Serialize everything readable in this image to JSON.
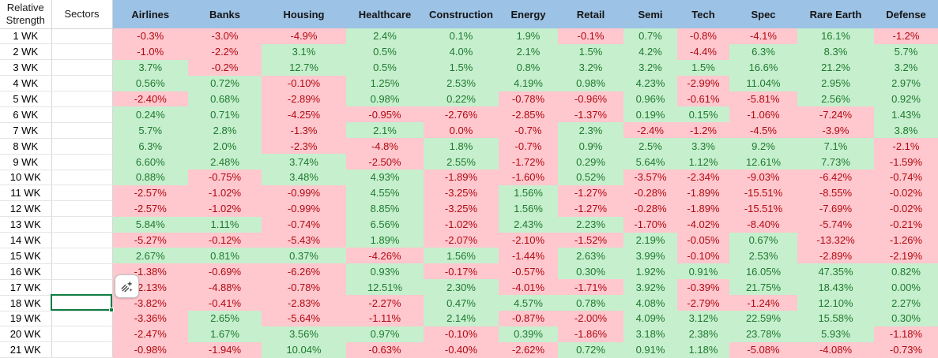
{
  "table": {
    "corner_header": {
      "line1": "Relative",
      "line2": "Strength"
    },
    "sectors_header": "Sectors",
    "columns": [
      "Airlines",
      "Banks",
      "Housing",
      "Healthcare",
      "Construction",
      "Energy",
      "Retail",
      "Semi",
      "Tech",
      "Spec",
      "Rare Earth",
      "Defense"
    ],
    "rows": [
      {
        "label": "1 WK",
        "values": [
          "-0.3%",
          "-3.0%",
          "-4.9%",
          "2.4%",
          "0.1%",
          "1.9%",
          "-0.1%",
          "0.7%",
          "-0.8%",
          "-4.1%",
          "16.1%",
          "-1.2%"
        ],
        "colors": "rrrgggrgrrgr"
      },
      {
        "label": "2 WK",
        "values": [
          "-1.0%",
          "-2.2%",
          "3.1%",
          "0.5%",
          "4.0%",
          "2.1%",
          "1.5%",
          "4.2%",
          "-4.4%",
          "6.3%",
          "8.3%",
          "5.7%"
        ],
        "colors": "rrggggggrggg"
      },
      {
        "label": "3 WK",
        "values": [
          "3.7%",
          "-0.2%",
          "12.7%",
          "0.5%",
          "1.5%",
          "0.8%",
          "3.2%",
          "3.2%",
          "1.5%",
          "16.6%",
          "21.2%",
          "3.2%"
        ],
        "colors": "grgggggggggg"
      },
      {
        "label": "4 WK",
        "values": [
          "0.56%",
          "0.72%",
          "-0.10%",
          "1.25%",
          "2.53%",
          "4.19%",
          "0.98%",
          "4.23%",
          "-2.99%",
          "11.04%",
          "2.95%",
          "2.97%"
        ],
        "colors": "ggrgggggrggg"
      },
      {
        "label": "5 WK",
        "values": [
          "-2.40%",
          "0.68%",
          "-2.89%",
          "0.98%",
          "0.22%",
          "-0.78%",
          "-0.96%",
          "0.96%",
          "-0.61%",
          "-5.81%",
          "2.56%",
          "0.92%"
        ],
        "colors": "rgrggrrgrrgg"
      },
      {
        "label": "6 WK",
        "values": [
          "0.24%",
          "0.71%",
          "-4.25%",
          "-0.95%",
          "-2.76%",
          "-2.85%",
          "-1.37%",
          "0.19%",
          "0.15%",
          "-1.06%",
          "-7.24%",
          "1.43%"
        ],
        "colors": "ggrrrrrggrrg"
      },
      {
        "label": "7 WK",
        "values": [
          "5.7%",
          "2.8%",
          "-1.3%",
          "2.1%",
          "0.0%",
          "-0.7%",
          "2.3%",
          "-2.4%",
          "-1.2%",
          "-4.5%",
          "-3.9%",
          "3.8%"
        ],
        "colors": "ggrgrrgrrrrg"
      },
      {
        "label": "8 WK",
        "values": [
          "6.3%",
          "2.0%",
          "-2.3%",
          "-4.8%",
          "1.8%",
          "-0.7%",
          "0.9%",
          "2.5%",
          "3.3%",
          "9.2%",
          "7.1%",
          "-2.1%"
        ],
        "colors": "ggrrgrgggggr"
      },
      {
        "label": "9 WK",
        "values": [
          "6.60%",
          "2.48%",
          "3.74%",
          "-2.50%",
          "2.55%",
          "-1.72%",
          "0.29%",
          "5.64%",
          "1.12%",
          "12.61%",
          "7.73%",
          "-1.59%"
        ],
        "colors": "gggrgrgggggr"
      },
      {
        "label": "10 WK",
        "values": [
          "0.88%",
          "-0.75%",
          "3.48%",
          "4.93%",
          "-1.89%",
          "-1.60%",
          "0.52%",
          "-3.57%",
          "-2.34%",
          "-9.03%",
          "-6.42%",
          "-0.74%"
        ],
        "colors": "grggrrgrrrrr"
      },
      {
        "label": "11 WK",
        "values": [
          "-2.57%",
          "-1.02%",
          "-0.99%",
          "4.55%",
          "-3.25%",
          "1.56%",
          "-1.27%",
          "-0.28%",
          "-1.89%",
          "-15.51%",
          "-8.55%",
          "-0.02%"
        ],
        "colors": "rrrgrgrrrrrr"
      },
      {
        "label": "12 WK",
        "values": [
          "-2.57%",
          "-1.02%",
          "-0.99%",
          "8.85%",
          "-3.25%",
          "1.56%",
          "-1.27%",
          "-0.28%",
          "-1.89%",
          "-15.51%",
          "-7.69%",
          "-0.02%"
        ],
        "colors": "rrrgrgrrrrrr"
      },
      {
        "label": "13 WK",
        "values": [
          "5.84%",
          "1.11%",
          "-0.74%",
          "6.56%",
          "-1.02%",
          "2.43%",
          "2.23%",
          "-1.70%",
          "-4.02%",
          "-8.40%",
          "-5.74%",
          "-0.21%"
        ],
        "colors": "ggrgrggrrrrr"
      },
      {
        "label": "14 WK",
        "values": [
          "-5.27%",
          "-0.12%",
          "-5.43%",
          "1.89%",
          "-2.07%",
          "-2.10%",
          "-1.52%",
          "2.19%",
          "-0.05%",
          "0.67%",
          "-13.32%",
          "-1.26%"
        ],
        "colors": "rrrgrrrgrgrr"
      },
      {
        "label": "15 WK",
        "values": [
          "2.67%",
          "0.81%",
          "0.37%",
          "-4.26%",
          "1.56%",
          "-1.44%",
          "2.63%",
          "3.99%",
          "-0.10%",
          "2.53%",
          "-2.89%",
          "-2.19%"
        ],
        "colors": "gggrgrggrgrr"
      },
      {
        "label": "16 WK",
        "values": [
          "-1.38%",
          "-0.69%",
          "-6.26%",
          "0.93%",
          "-0.17%",
          "-0.57%",
          "0.30%",
          "1.92%",
          "0.91%",
          "16.05%",
          "47.35%",
          "0.82%"
        ],
        "colors": "rrrgrrgggggg"
      },
      {
        "label": "17 WK",
        "values": [
          "-2.13%",
          "-4.88%",
          "-0.78%",
          "12.51%",
          "2.30%",
          "-4.01%",
          "-1.71%",
          "3.92%",
          "-0.39%",
          "21.75%",
          "18.43%",
          "0.00%"
        ],
        "colors": "rrrggrrgrggg"
      },
      {
        "label": "18 WK",
        "values": [
          "-3.82%",
          "-0.41%",
          "-2.83%",
          "-2.27%",
          "0.47%",
          "4.57%",
          "0.78%",
          "4.08%",
          "-2.79%",
          "-1.24%",
          "12.10%",
          "2.27%"
        ],
        "colors": "rrrrggggrrgg"
      },
      {
        "label": "19 WK",
        "values": [
          "-3.36%",
          "2.65%",
          "-5.64%",
          "-1.11%",
          "2.14%",
          "-0.87%",
          "-2.00%",
          "4.09%",
          "3.12%",
          "22.59%",
          "15.58%",
          "0.30%"
        ],
        "colors": "rgrrgrrggggg"
      },
      {
        "label": "20 WK",
        "values": [
          "-2.47%",
          "1.67%",
          "3.56%",
          "0.97%",
          "-0.10%",
          "0.39%",
          "-1.86%",
          "3.18%",
          "2.38%",
          "23.78%",
          "5.93%",
          "-1.18%"
        ],
        "colors": "rgggrgrggggr"
      },
      {
        "label": "21 WK",
        "values": [
          "-0.98%",
          "-1.94%",
          "10.04%",
          "-0.63%",
          "-0.40%",
          "-2.62%",
          "0.72%",
          "0.91%",
          "1.18%",
          "-5.08%",
          "-4.08%",
          "-0.73%"
        ],
        "colors": "rrgrrrgggrrr"
      }
    ]
  },
  "selection": {
    "column": "Sectors",
    "row": "18 WK"
  },
  "icons": {
    "floating_button": "sparkle-pen-icon"
  },
  "palette": {
    "header_bg": "#9CC2E5",
    "positive_bg": "#C6EFCE",
    "positive_text": "#1F7A2E",
    "negative_bg": "#FFC7CE",
    "negative_text": "#B00A11",
    "selection_border": "#107C41",
    "gridline_dark": "#D6D6D6",
    "gridline_light": "#E5E5E5"
  }
}
